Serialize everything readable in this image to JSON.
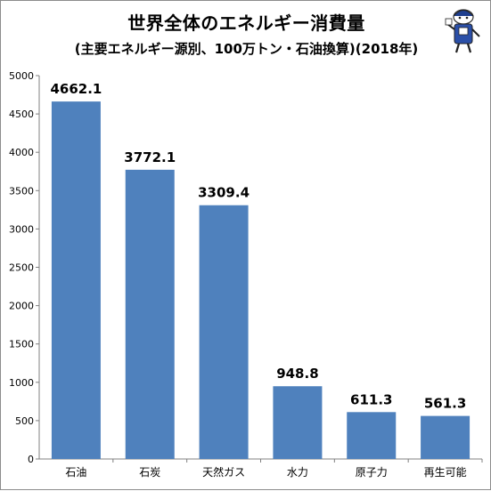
{
  "chart_data": {
    "type": "bar",
    "title": "世界全体のエネルギー消費量",
    "subtitle": "(主要エネルギー源別、100万トン・石油換算)(2018年)",
    "categories": [
      "石油",
      "石炭",
      "天然ガス",
      "水力",
      "原子力",
      "再生可能"
    ],
    "values": [
      4662.1,
      3772.1,
      3309.4,
      948.8,
      611.3,
      561.3
    ],
    "value_labels": [
      "4662.1",
      "3772.1",
      "3309.4",
      "948.8",
      "611.3",
      "561.3"
    ],
    "ylim": [
      0,
      5000
    ],
    "yticks": [
      "0",
      "500",
      "1000",
      "1500",
      "2000",
      "2500",
      "3000",
      "3500",
      "4000",
      "4500",
      "5000"
    ],
    "bar_color": "#4f81bd",
    "grid": false,
    "legend": "none"
  },
  "mascot": {
    "icon": "mascot-character-icon"
  }
}
